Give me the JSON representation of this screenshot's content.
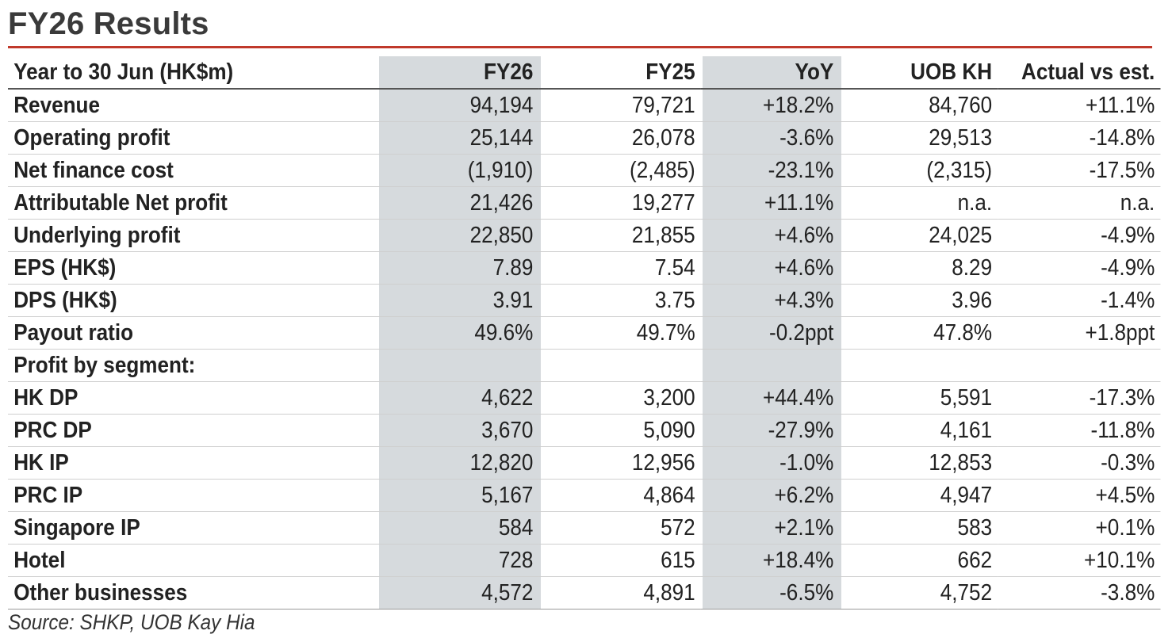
{
  "title": "FY26 Results",
  "table": {
    "headers": [
      "Year to 30 Jun (HK$m)",
      "FY26",
      "FY25",
      "YoY",
      "UOB KH",
      "Actual vs est."
    ],
    "rows": [
      [
        "Revenue",
        "94,194",
        "79,721",
        "+18.2%",
        "84,760",
        "+11.1%"
      ],
      [
        "Operating profit",
        "25,144",
        "26,078",
        "-3.6%",
        "29,513",
        "-14.8%"
      ],
      [
        "Net finance cost",
        "(1,910)",
        "(2,485)",
        "-23.1%",
        "(2,315)",
        "-17.5%"
      ],
      [
        "Attributable Net profit",
        "21,426",
        "19,277",
        "+11.1%",
        "n.a.",
        "n.a."
      ],
      [
        "Underlying profit",
        "22,850",
        "21,855",
        "+4.6%",
        "24,025",
        "-4.9%"
      ],
      [
        "EPS (HK$)",
        "7.89",
        "7.54",
        "+4.6%",
        "8.29",
        "-4.9%"
      ],
      [
        "DPS (HK$)",
        "3.91",
        "3.75",
        "+4.3%",
        "3.96",
        "-1.4%"
      ],
      [
        "Payout ratio",
        "49.6%",
        "49.7%",
        "-0.2ppt",
        "47.8%",
        "+1.8ppt"
      ],
      [
        "Profit by segment:",
        "",
        "",
        "",
        "",
        ""
      ],
      [
        "HK DP",
        "4,622",
        "3,200",
        "+44.4%",
        "5,591",
        "-17.3%"
      ],
      [
        "PRC DP",
        "3,670",
        "5,090",
        "-27.9%",
        "4,161",
        "-11.8%"
      ],
      [
        "HK IP",
        "12,820",
        "12,956",
        "-1.0%",
        "12,853",
        "-0.3%"
      ],
      [
        "PRC IP",
        "5,167",
        "4,864",
        "+6.2%",
        "4,947",
        "+4.5%"
      ],
      [
        "Singapore IP",
        "584",
        "572",
        "+2.1%",
        "583",
        "+0.1%"
      ],
      [
        "Hotel",
        "728",
        "615",
        "+18.4%",
        "662",
        "+10.1%"
      ],
      [
        "Other businesses",
        "4,572",
        "4,891",
        "-6.5%",
        "4,752",
        "-3.8%"
      ]
    ]
  },
  "source": "Source: SHKP, UOB Kay Hia",
  "colors": {
    "accent_rule": "#c0392b",
    "highlight_column": "#d6dadd",
    "text": "#222222"
  }
}
